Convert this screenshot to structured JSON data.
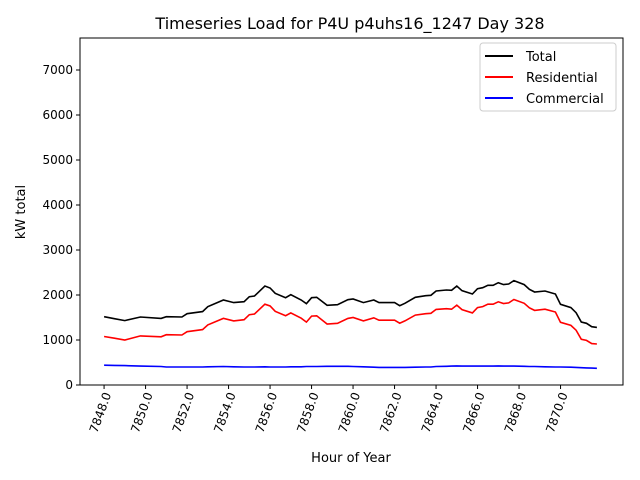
{
  "chart_data": {
    "type": "line",
    "title": "Timeseries Load for P4U p4uhs16_1247  Day 328",
    "xlabel": "Hour of Year",
    "ylabel": "kW total",
    "xlim": [
      7846.84,
      7873.01
    ],
    "ylim": [
      0,
      7711
    ],
    "xticks": [
      7848,
      7850,
      7852,
      7854,
      7856,
      7858,
      7860,
      7862,
      7864,
      7866,
      7868,
      7870
    ],
    "xtick_labels": [
      "7848.0",
      "7850.0",
      "7852.0",
      "7854.0",
      "7856.0",
      "7858.0",
      "7860.0",
      "7862.0",
      "7864.0",
      "7866.0",
      "7868.0",
      "7870.0"
    ],
    "yticks": [
      0,
      1000,
      2000,
      3000,
      4000,
      5000,
      6000,
      7000
    ],
    "ytick_labels": [
      "0",
      "1000",
      "2000",
      "3000",
      "4000",
      "5000",
      "6000",
      "7000"
    ],
    "grid": false,
    "legend_position": "top-right",
    "x": [
      7848.0,
      7848.5,
      7849.0,
      7849.75,
      7850.75,
      7851.0,
      7851.75,
      7852.0,
      7852.75,
      7853.0,
      7853.75,
      7854.25,
      7854.75,
      7855.0,
      7855.25,
      7855.75,
      7856.0,
      7856.25,
      7856.75,
      7857.0,
      7857.5,
      7857.75,
      7858.0,
      7858.25,
      7858.75,
      7859.25,
      7859.75,
      7860.0,
      7860.5,
      7861.0,
      7861.25,
      7862.0,
      7862.25,
      7862.5,
      7863.0,
      7863.5,
      7863.75,
      7864.0,
      7864.5,
      7864.75,
      7865.0,
      7865.25,
      7865.75,
      7866.0,
      7866.25,
      7866.5,
      7866.75,
      7867.0,
      7867.25,
      7867.5,
      7867.75,
      7868.25,
      7868.5,
      7868.75,
      7869.25,
      7869.75,
      7870.0,
      7870.5,
      7870.75,
      7871.0,
      7871.25,
      7871.5,
      7871.75
    ],
    "series": [
      {
        "name": "Total",
        "color": "#000000",
        "values": [
          1518,
          1474,
          1430,
          1511,
          1481,
          1518,
          1511,
          1585,
          1630,
          1741,
          1889,
          1830,
          1852,
          1963,
          1978,
          2200,
          2156,
          2037,
          1941,
          2007,
          1889,
          1807,
          1941,
          1948,
          1770,
          1785,
          1896,
          1911,
          1830,
          1889,
          1830,
          1830,
          1763,
          1815,
          1948,
          1985,
          1993,
          2089,
          2111,
          2104,
          2200,
          2096,
          2022,
          2141,
          2163,
          2215,
          2215,
          2274,
          2230,
          2244,
          2319,
          2230,
          2126,
          2067,
          2089,
          2022,
          1793,
          1719,
          1607,
          1400,
          1370,
          1296,
          1281
        ]
      },
      {
        "name": "Residential",
        "color": "#ff0000",
        "values": [
          1078,
          1039,
          1000,
          1091,
          1071,
          1118,
          1111,
          1185,
          1230,
          1336,
          1479,
          1425,
          1452,
          1563,
          1578,
          1795,
          1756,
          1637,
          1541,
          1602,
          1484,
          1397,
          1531,
          1538,
          1355,
          1370,
          1481,
          1501,
          1425,
          1494,
          1440,
          1440,
          1373,
          1425,
          1553,
          1585,
          1593,
          1679,
          1696,
          1684,
          1775,
          1676,
          1602,
          1721,
          1743,
          1795,
          1795,
          1849,
          1810,
          1824,
          1899,
          1815,
          1716,
          1657,
          1684,
          1622,
          1393,
          1324,
          1217,
          1015,
          990,
          921,
          911
        ]
      },
      {
        "name": "Commercial",
        "color": "#0000ff",
        "values": [
          440,
          435,
          430,
          420,
          410,
          400,
          400,
          400,
          400,
          405,
          410,
          405,
          400,
          400,
          400,
          405,
          400,
          400,
          400,
          405,
          405,
          410,
          410,
          410,
          415,
          415,
          415,
          410,
          405,
          395,
          390,
          390,
          390,
          390,
          395,
          400,
          400,
          410,
          415,
          420,
          425,
          420,
          420,
          420,
          420,
          420,
          420,
          425,
          420,
          420,
          420,
          415,
          410,
          410,
          405,
          400,
          400,
          395,
          390,
          385,
          380,
          375,
          370
        ]
      }
    ]
  }
}
